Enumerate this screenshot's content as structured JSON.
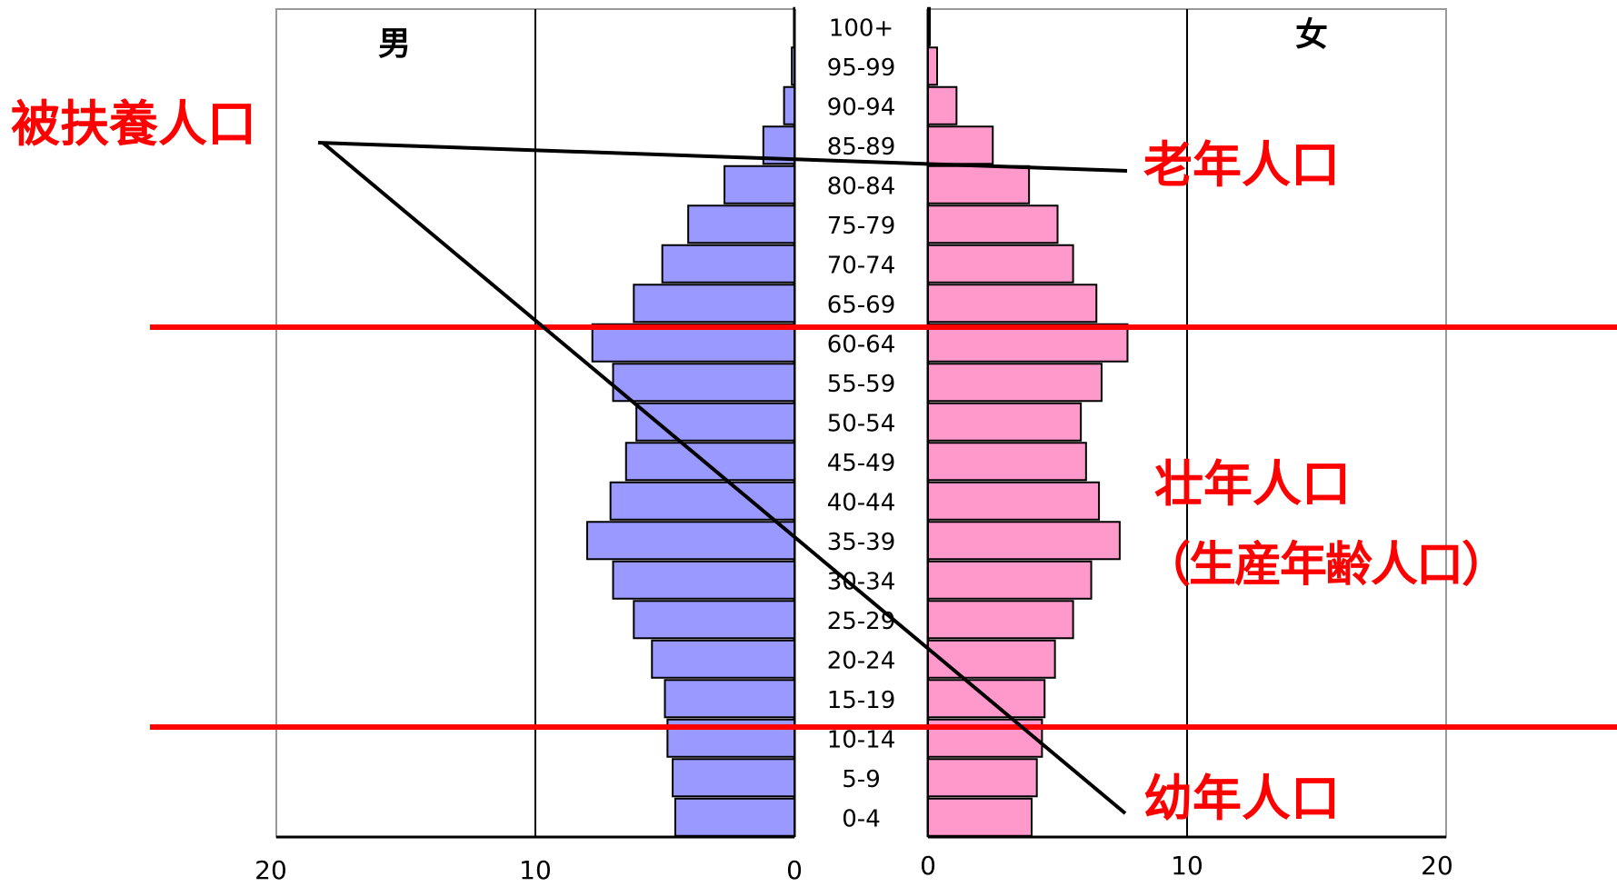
{
  "chart_data": {
    "type": "bar",
    "subtype": "population-pyramid",
    "orientation": "horizontal",
    "categories": [
      "0-4",
      "5-9",
      "10-14",
      "15-19",
      "20-24",
      "25-29",
      "30-34",
      "35-39",
      "40-44",
      "45-49",
      "50-54",
      "55-59",
      "60-64",
      "65-69",
      "70-74",
      "75-79",
      "80-84",
      "85-89",
      "90-94",
      "95-99",
      "100+"
    ],
    "series": [
      {
        "name": "男",
        "color": "#9999ff",
        "values": [
          4.6,
          4.7,
          4.9,
          5.0,
          5.5,
          6.2,
          7.0,
          8.0,
          7.1,
          6.5,
          6.1,
          7.0,
          7.8,
          6.2,
          5.1,
          4.1,
          2.7,
          1.2,
          0.4,
          0.1,
          0.02
        ]
      },
      {
        "name": "女",
        "color": "#ff99cc",
        "values": [
          4.0,
          4.2,
          4.4,
          4.5,
          4.9,
          5.6,
          6.3,
          7.4,
          6.6,
          6.1,
          5.9,
          6.7,
          7.7,
          6.5,
          5.6,
          5.0,
          3.9,
          2.5,
          1.1,
          0.35,
          0.07
        ]
      }
    ],
    "xlim": [
      0,
      20
    ],
    "x_ticks_left": [
      "20",
      "10",
      "0"
    ],
    "x_ticks_right": [
      "0",
      "10",
      "20"
    ],
    "grid": true,
    "labels": {
      "male": "男",
      "female": "女"
    },
    "annotations": {
      "dependent": "被扶養人口",
      "elderly": "老年人口",
      "working": "壮年人口",
      "working_sub": "（生産年齢人口）",
      "youth": "幼年人口"
    },
    "divider_ages": [
      "15-19 / 10-14",
      "65-69 / 60-64"
    ],
    "colors": {
      "annotation": "#ff0000",
      "divider": "#ff0000",
      "pointer": "#000000"
    }
  }
}
